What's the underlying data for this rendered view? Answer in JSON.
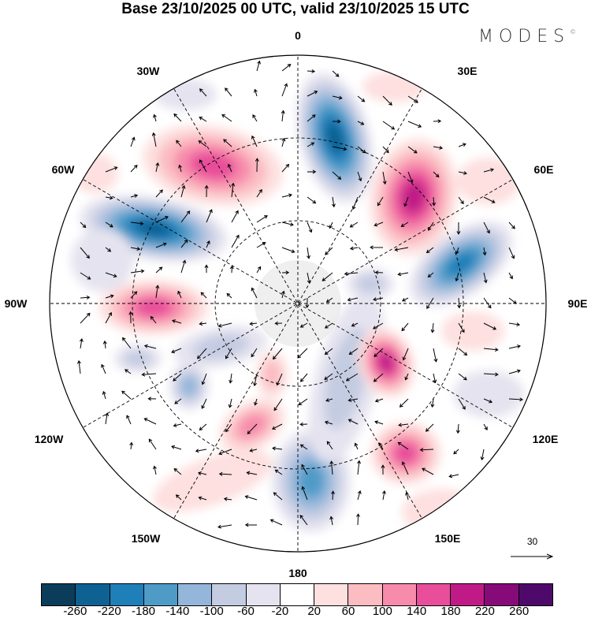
{
  "title": "Base 23/10/2025 00 UTC, valid 23/10/2025 15 UTC",
  "logo": "MODES",
  "logo_mark": "©",
  "labels": {
    "n0": "0",
    "e30": "30E",
    "e60": "60E",
    "e90": "90E",
    "e120": "120E",
    "e150": "150E",
    "s180": "180",
    "w150": "150W",
    "w120": "120W",
    "w90": "90W",
    "w60": "60W",
    "w30": "30W"
  },
  "vector_scale": "30",
  "colorbar": {
    "colors": [
      "#0b3d5a",
      "#0e6193",
      "#1f7fb9",
      "#4f9bc8",
      "#93b6da",
      "#c4cce2",
      "#e5e3ef",
      "#ffffff",
      "#fde0df",
      "#fbbcc2",
      "#f78bac",
      "#e84e9a",
      "#c01a86",
      "#860a78",
      "#4e0a6a"
    ],
    "ticks": [
      "-260",
      "-220",
      "-180",
      "-140",
      "-100",
      "-60",
      "-20",
      "20",
      "60",
      "100",
      "140",
      "180",
      "220",
      "260"
    ]
  }
}
